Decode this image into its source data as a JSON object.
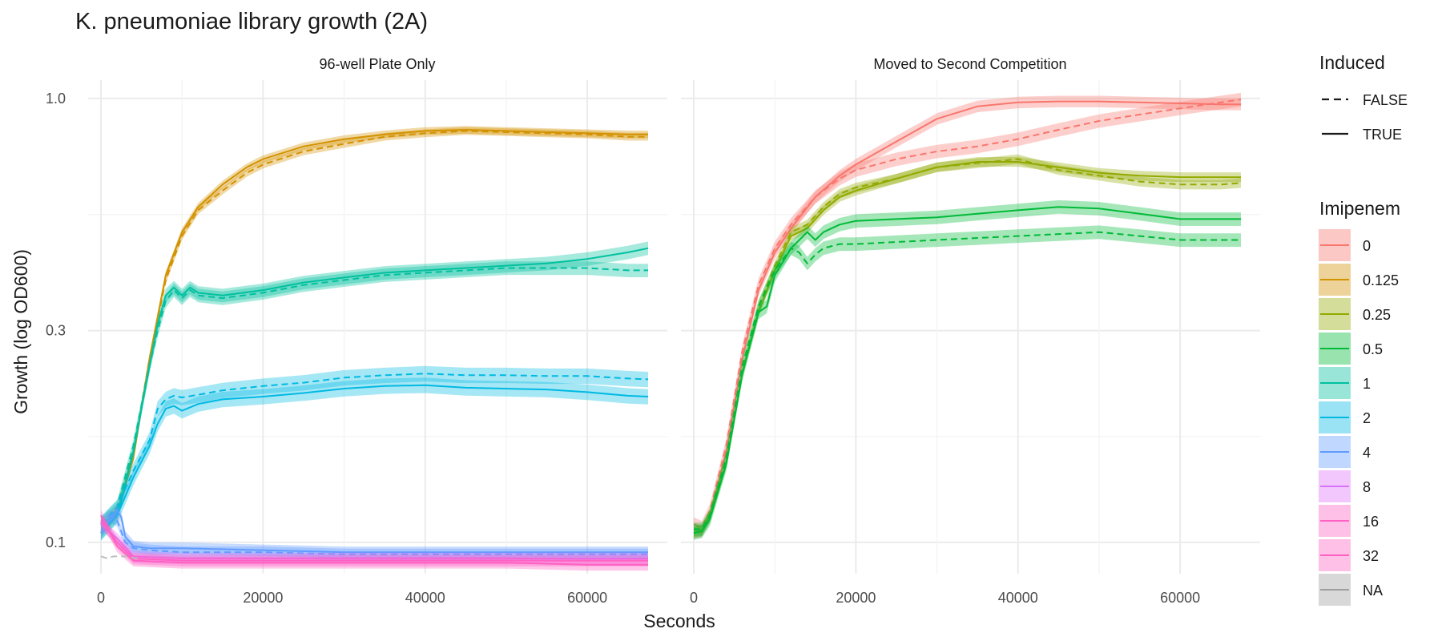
{
  "chart_data": {
    "type": "line",
    "title": "K. pneumoniae library growth (2A)",
    "xlabel": "Seconds",
    "ylabel": "Growth (log OD600)",
    "x_scale": "linear",
    "y_scale": "log",
    "xlim": [
      0,
      67500
    ],
    "ylim": [
      0.085,
      1.1
    ],
    "x_ticks": [
      0,
      20000,
      40000,
      60000
    ],
    "x_tick_labels": [
      "0",
      "20000",
      "40000",
      "60000"
    ],
    "y_ticks": [
      0.1,
      0.3,
      1.0
    ],
    "y_tick_labels": [
      "0.1",
      "0.3",
      "1.0"
    ],
    "grid": true,
    "legend_position": "right",
    "legend_linetype": {
      "title": "Induced",
      "entries": [
        {
          "label": "FALSE",
          "dash": true
        },
        {
          "label": "TRUE",
          "dash": false
        }
      ]
    },
    "legend_color": {
      "title": "Imipenem",
      "entries": [
        {
          "label": "0",
          "color": "#F8766D"
        },
        {
          "label": "0.125",
          "color": "#D39200"
        },
        {
          "label": "0.25",
          "color": "#93AA00"
        },
        {
          "label": "0.5",
          "color": "#00BA38"
        },
        {
          "label": "1",
          "color": "#00C19F"
        },
        {
          "label": "2",
          "color": "#00B9E3"
        },
        {
          "label": "4",
          "color": "#619CFF"
        },
        {
          "label": "8",
          "color": "#DB72FB"
        },
        {
          "label": "16",
          "color": "#FF61C3"
        },
        {
          "label": "32",
          "color": "#FF61C3"
        },
        {
          "label": "NA",
          "color": "#9E9E9E"
        }
      ]
    },
    "panels": [
      {
        "title": "96-well Plate Only",
        "series": [
          {
            "imipenem": "0.125",
            "induced": "TRUE",
            "color": "#D39200",
            "band": 0.02,
            "x": [
              0,
              2000,
              4000,
              6000,
              8000,
              10000,
              12000,
              15000,
              18000,
              20000,
              25000,
              30000,
              35000,
              40000,
              45000,
              50000,
              55000,
              60000,
              65000,
              67500
            ],
            "y": [
              0.105,
              0.115,
              0.155,
              0.26,
              0.4,
              0.5,
              0.57,
              0.64,
              0.7,
              0.73,
              0.78,
              0.81,
              0.83,
              0.845,
              0.85,
              0.845,
              0.84,
              0.835,
              0.83,
              0.83
            ]
          },
          {
            "imipenem": "0.125",
            "induced": "FALSE",
            "color": "#D39200",
            "band": 0.02,
            "x": [
              0,
              2000,
              4000,
              6000,
              8000,
              10000,
              12000,
              15000,
              18000,
              20000,
              25000,
              30000,
              35000,
              40000,
              45000,
              50000,
              55000,
              60000,
              65000,
              67500
            ],
            "y": [
              0.11,
              0.12,
              0.16,
              0.26,
              0.39,
              0.49,
              0.56,
              0.62,
              0.68,
              0.71,
              0.76,
              0.79,
              0.82,
              0.835,
              0.845,
              0.84,
              0.835,
              0.83,
              0.82,
              0.82
            ]
          },
          {
            "imipenem": "1",
            "induced": "TRUE",
            "color": "#00C19F",
            "band": 0.035,
            "x": [
              0,
              2000,
              4000,
              6000,
              7000,
              8000,
              9000,
              10000,
              11000,
              12000,
              15000,
              20000,
              25000,
              30000,
              35000,
              40000,
              45000,
              50000,
              55000,
              60000,
              65000,
              67500
            ],
            "y": [
              0.105,
              0.115,
              0.16,
              0.25,
              0.31,
              0.36,
              0.375,
              0.36,
              0.375,
              0.365,
              0.36,
              0.37,
              0.385,
              0.395,
              0.405,
              0.41,
              0.415,
              0.42,
              0.425,
              0.435,
              0.45,
              0.46
            ]
          },
          {
            "imipenem": "1",
            "induced": "FALSE",
            "color": "#00C19F",
            "band": 0.035,
            "x": [
              0,
              2000,
              4000,
              6000,
              7000,
              8000,
              9000,
              10000,
              11000,
              12000,
              15000,
              20000,
              25000,
              30000,
              35000,
              40000,
              45000,
              50000,
              55000,
              60000,
              65000,
              67500
            ],
            "y": [
              0.11,
              0.12,
              0.165,
              0.25,
              0.3,
              0.35,
              0.37,
              0.355,
              0.37,
              0.36,
              0.355,
              0.365,
              0.38,
              0.39,
              0.4,
              0.405,
              0.41,
              0.415,
              0.415,
              0.415,
              0.41,
              0.41
            ]
          },
          {
            "imipenem": "2",
            "induced": "TRUE",
            "color": "#00B9E3",
            "band": 0.04,
            "x": [
              0,
              2000,
              4000,
              6000,
              7000,
              8000,
              9000,
              10000,
              12000,
              15000,
              20000,
              25000,
              30000,
              35000,
              40000,
              45000,
              50000,
              55000,
              60000,
              65000,
              67500
            ],
            "y": [
              0.105,
              0.115,
              0.14,
              0.165,
              0.185,
              0.2,
              0.203,
              0.198,
              0.205,
              0.21,
              0.213,
              0.217,
              0.222,
              0.225,
              0.226,
              0.223,
              0.222,
              0.221,
              0.218,
              0.214,
              0.213
            ]
          },
          {
            "imipenem": "2",
            "induced": "FALSE",
            "color": "#00B9E3",
            "band": 0.04,
            "x": [
              0,
              2000,
              4000,
              6000,
              7000,
              8000,
              9000,
              10000,
              12000,
              15000,
              20000,
              25000,
              30000,
              35000,
              40000,
              45000,
              50000,
              55000,
              60000,
              65000,
              67500
            ],
            "y": [
              0.11,
              0.12,
              0.145,
              0.17,
              0.2,
              0.21,
              0.214,
              0.212,
              0.215,
              0.22,
              0.225,
              0.229,
              0.235,
              0.238,
              0.24,
              0.238,
              0.238,
              0.237,
              0.237,
              0.234,
              0.233
            ]
          },
          {
            "imipenem": "4",
            "induced": "TRUE",
            "color": "#619CFF",
            "band": 0.03,
            "x": [
              0,
              1000,
              2000,
              2500,
              3000,
              4000,
              6000,
              10000,
              20000,
              30000,
              40000,
              50000,
              60000,
              67500
            ],
            "y": [
              0.105,
              0.112,
              0.118,
              0.114,
              0.103,
              0.098,
              0.097,
              0.097,
              0.096,
              0.095,
              0.095,
              0.095,
              0.095,
              0.095
            ]
          },
          {
            "imipenem": "4",
            "induced": "FALSE",
            "color": "#619CFF",
            "band": 0.03,
            "x": [
              0,
              1000,
              2000,
              3000,
              4000,
              6000,
              10000,
              20000,
              30000,
              40000,
              50000,
              60000,
              67500
            ],
            "y": [
              0.11,
              0.115,
              0.112,
              0.1,
              0.097,
              0.096,
              0.095,
              0.095,
              0.094,
              0.094,
              0.094,
              0.094,
              0.094
            ]
          },
          {
            "imipenem": "8",
            "induced": "TRUE",
            "color": "#DB72FB",
            "band": 0.03,
            "x": [
              0,
              2000,
              4000,
              10000,
              20000,
              30000,
              40000,
              50000,
              60000,
              67500
            ],
            "y": [
              0.11,
              0.102,
              0.093,
              0.092,
              0.092,
              0.092,
              0.092,
              0.092,
              0.092,
              0.092
            ]
          },
          {
            "imipenem": "16",
            "induced": "TRUE",
            "color": "#FF61C3",
            "band": 0.03,
            "x": [
              0,
              2000,
              4000,
              10000,
              20000,
              30000,
              40000,
              50000,
              60000,
              67500
            ],
            "y": [
              0.112,
              0.1,
              0.092,
              0.091,
              0.091,
              0.091,
              0.091,
              0.091,
              0.091,
              0.091
            ]
          },
          {
            "imipenem": "32",
            "induced": "TRUE",
            "color": "#FF61C3",
            "band": 0.03,
            "x": [
              0,
              2000,
              4000,
              10000,
              20000,
              30000,
              40000,
              50000,
              60000,
              67500
            ],
            "y": [
              0.115,
              0.098,
              0.091,
              0.09,
              0.09,
              0.09,
              0.09,
              0.09,
              0.089,
              0.089
            ]
          },
          {
            "imipenem": "NA",
            "induced": "FALSE",
            "color": "#BDBDBD",
            "band": 0,
            "x": [
              0,
              800,
              1500,
              3000,
              4500
            ],
            "y": [
              0.093,
              0.092,
              0.093,
              0.093,
              0.092
            ]
          }
        ]
      },
      {
        "title": "Moved to Second Competition",
        "series": [
          {
            "imipenem": "0",
            "induced": "TRUE",
            "color": "#F8766D",
            "band": 0.03,
            "x": [
              0,
              1000,
              2000,
              4000,
              6000,
              8000,
              10000,
              12000,
              15000,
              18000,
              20000,
              25000,
              30000,
              35000,
              40000,
              45000,
              50000,
              55000,
              60000,
              65000,
              67500
            ],
            "y": [
              0.105,
              0.106,
              0.115,
              0.16,
              0.26,
              0.37,
              0.45,
              0.51,
              0.6,
              0.67,
              0.71,
              0.8,
              0.9,
              0.96,
              0.98,
              0.985,
              0.985,
              0.98,
              0.975,
              0.97,
              0.97
            ]
          },
          {
            "imipenem": "0",
            "induced": "FALSE",
            "color": "#F8766D",
            "band": 0.035,
            "x": [
              0,
              1000,
              2000,
              4000,
              6000,
              8000,
              10000,
              12000,
              15000,
              18000,
              20000,
              25000,
              30000,
              35000,
              40000,
              45000,
              50000,
              55000,
              60000,
              65000,
              67500
            ],
            "y": [
              0.11,
              0.108,
              0.118,
              0.165,
              0.27,
              0.38,
              0.46,
              0.52,
              0.6,
              0.66,
              0.69,
              0.73,
              0.76,
              0.78,
              0.81,
              0.85,
              0.89,
              0.92,
              0.95,
              0.98,
              0.995
            ]
          },
          {
            "imipenem": "0.25",
            "induced": "TRUE",
            "color": "#93AA00",
            "band": 0.025,
            "x": [
              0,
              1000,
              2000,
              4000,
              6000,
              8000,
              10000,
              12000,
              14000,
              16000,
              18000,
              20000,
              25000,
              30000,
              35000,
              40000,
              45000,
              50000,
              55000,
              60000,
              65000,
              67500
            ],
            "y": [
              0.105,
              0.106,
              0.114,
              0.15,
              0.24,
              0.33,
              0.41,
              0.49,
              0.51,
              0.56,
              0.6,
              0.62,
              0.66,
              0.7,
              0.72,
              0.72,
              0.7,
              0.68,
              0.67,
              0.665,
              0.665,
              0.665
            ]
          },
          {
            "imipenem": "0.25",
            "induced": "FALSE",
            "color": "#93AA00",
            "band": 0.025,
            "x": [
              0,
              1000,
              2000,
              4000,
              6000,
              8000,
              10000,
              12000,
              14000,
              16000,
              18000,
              20000,
              25000,
              30000,
              35000,
              40000,
              45000,
              50000,
              55000,
              60000,
              65000,
              67500
            ],
            "y": [
              0.107,
              0.107,
              0.116,
              0.155,
              0.245,
              0.34,
              0.42,
              0.5,
              0.52,
              0.57,
              0.61,
              0.63,
              0.66,
              0.7,
              0.715,
              0.73,
              0.69,
              0.67,
              0.65,
              0.64,
              0.64,
              0.645
            ]
          },
          {
            "imipenem": "0.5",
            "induced": "TRUE",
            "color": "#00BA38",
            "band": 0.035,
            "x": [
              0,
              1000,
              2000,
              4000,
              6000,
              8000,
              9000,
              10000,
              12000,
              14000,
              15000,
              16000,
              18000,
              20000,
              25000,
              30000,
              35000,
              40000,
              45000,
              50000,
              55000,
              60000,
              65000,
              67500
            ],
            "y": [
              0.105,
              0.106,
              0.113,
              0.15,
              0.24,
              0.33,
              0.34,
              0.4,
              0.46,
              0.5,
              0.48,
              0.5,
              0.52,
              0.53,
              0.535,
              0.54,
              0.55,
              0.56,
              0.57,
              0.565,
              0.55,
              0.535,
              0.535,
              0.535
            ]
          },
          {
            "imipenem": "0.5",
            "induced": "FALSE",
            "color": "#00BA38",
            "band": 0.035,
            "x": [
              0,
              1000,
              2000,
              4000,
              6000,
              8000,
              10000,
              12000,
              13000,
              14000,
              15000,
              16000,
              18000,
              20000,
              25000,
              30000,
              35000,
              40000,
              45000,
              50000,
              55000,
              60000,
              65000,
              67500
            ],
            "y": [
              0.107,
              0.107,
              0.115,
              0.155,
              0.25,
              0.34,
              0.41,
              0.46,
              0.45,
              0.425,
              0.445,
              0.46,
              0.47,
              0.47,
              0.475,
              0.48,
              0.485,
              0.49,
              0.495,
              0.5,
              0.49,
              0.48,
              0.48,
              0.48
            ]
          }
        ]
      }
    ]
  }
}
